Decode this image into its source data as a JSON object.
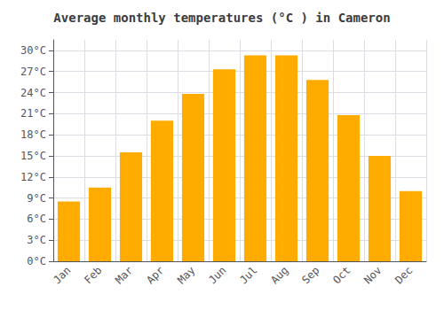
{
  "chart_data": {
    "type": "bar",
    "title": "Average monthly temperatures (°C ) in Cameron",
    "categories": [
      "Jan",
      "Feb",
      "Mar",
      "Apr",
      "May",
      "Jun",
      "Jul",
      "Aug",
      "Sep",
      "Oct",
      "Nov",
      "Dec"
    ],
    "values": [
      8.5,
      10.5,
      15.5,
      20.0,
      23.8,
      27.3,
      29.3,
      29.3,
      25.8,
      20.8,
      15.0,
      10.0
    ],
    "color": "#FFAB00",
    "ylim": [
      0,
      31.5
    ],
    "yticks": [
      {
        "value": 0,
        "label": "0°C"
      },
      {
        "value": 3,
        "label": "3°C"
      },
      {
        "value": 6,
        "label": "6°C"
      },
      {
        "value": 9,
        "label": "9°C"
      },
      {
        "value": 12,
        "label": "12°C"
      },
      {
        "value": 15,
        "label": "15°C"
      },
      {
        "value": 18,
        "label": "18°C"
      },
      {
        "value": 21,
        "label": "21°C"
      },
      {
        "value": 24,
        "label": "24°C"
      },
      {
        "value": 27,
        "label": "27°C"
      },
      {
        "value": 30,
        "label": "30°C"
      }
    ],
    "grid": true
  }
}
